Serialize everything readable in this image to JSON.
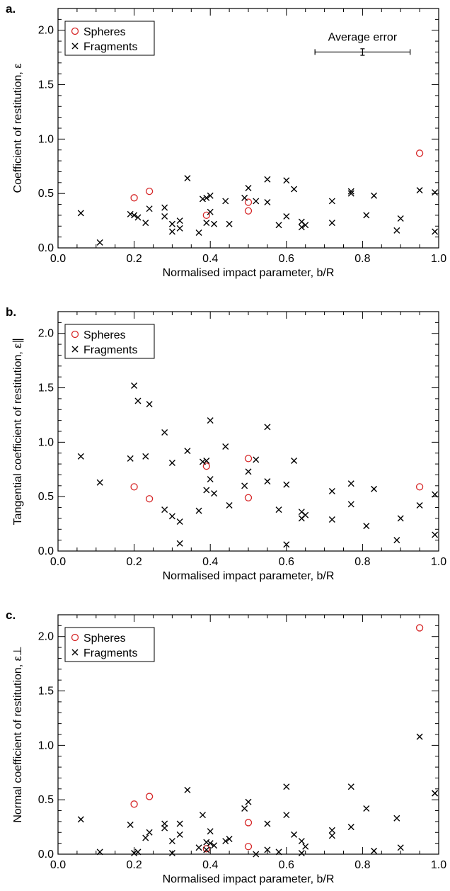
{
  "colors": {
    "spheres": "#d62728",
    "fragments": "#000000",
    "axes": "#000000"
  },
  "chart_data": [
    {
      "type": "scatter",
      "panel_label": "a.",
      "xlabel": "Normalised impact parameter, b/R",
      "ylabel": "Coefficient of restitution, ε",
      "xlim": [
        0,
        1.0
      ],
      "ylim": [
        0,
        2.2
      ],
      "xticks": [
        "0.0",
        "0.2",
        "0.4",
        "0.6",
        "0.8",
        "1.0"
      ],
      "xtick_values": [
        0,
        0.2,
        0.4,
        0.6,
        0.8,
        1.0
      ],
      "yticks": [
        "0.0",
        "0.5",
        "1.0",
        "1.5",
        "2.0"
      ],
      "ytick_values": [
        0,
        0.5,
        1.0,
        1.5,
        2.0
      ],
      "legend": {
        "position": "top-left",
        "entries": [
          "Spheres",
          "Fragments"
        ]
      },
      "annotation": {
        "text": "Average error",
        "x_center": 0.8,
        "half_width": 0.125,
        "y": 1.8,
        "y_err": 0.03
      },
      "series": [
        {
          "name": "Spheres",
          "marker": "circle",
          "points": [
            [
              0.2,
              0.46
            ],
            [
              0.24,
              0.52
            ],
            [
              0.39,
              0.3
            ],
            [
              0.5,
              0.42
            ],
            [
              0.5,
              0.34
            ],
            [
              0.95,
              0.87
            ]
          ]
        },
        {
          "name": "Fragments",
          "marker": "x",
          "points": [
            [
              0.06,
              0.32
            ],
            [
              0.11,
              0.05
            ],
            [
              0.19,
              0.31
            ],
            [
              0.2,
              0.3
            ],
            [
              0.21,
              0.28
            ],
            [
              0.23,
              0.23
            ],
            [
              0.24,
              0.36
            ],
            [
              0.28,
              0.29
            ],
            [
              0.28,
              0.37
            ],
            [
              0.3,
              0.22
            ],
            [
              0.3,
              0.15
            ],
            [
              0.32,
              0.25
            ],
            [
              0.32,
              0.18
            ],
            [
              0.34,
              0.64
            ],
            [
              0.37,
              0.14
            ],
            [
              0.38,
              0.45
            ],
            [
              0.39,
              0.23
            ],
            [
              0.39,
              0.46
            ],
            [
              0.4,
              0.48
            ],
            [
              0.4,
              0.33
            ],
            [
              0.41,
              0.22
            ],
            [
              0.44,
              0.43
            ],
            [
              0.45,
              0.22
            ],
            [
              0.49,
              0.46
            ],
            [
              0.5,
              0.55
            ],
            [
              0.52,
              0.43
            ],
            [
              0.55,
              0.42
            ],
            [
              0.55,
              0.63
            ],
            [
              0.58,
              0.21
            ],
            [
              0.6,
              0.62
            ],
            [
              0.6,
              0.29
            ],
            [
              0.62,
              0.54
            ],
            [
              0.64,
              0.19
            ],
            [
              0.64,
              0.24
            ],
            [
              0.65,
              0.21
            ],
            [
              0.72,
              0.23
            ],
            [
              0.72,
              0.43
            ],
            [
              0.77,
              0.52
            ],
            [
              0.77,
              0.5
            ],
            [
              0.81,
              0.3
            ],
            [
              0.83,
              0.48
            ],
            [
              0.89,
              0.16
            ],
            [
              0.9,
              0.27
            ],
            [
              0.95,
              0.53
            ],
            [
              0.99,
              0.51
            ],
            [
              0.99,
              0.15
            ]
          ]
        }
      ]
    },
    {
      "type": "scatter",
      "panel_label": "b.",
      "xlabel": "Normalised impact parameter, b/R",
      "ylabel": "Tangential coefficient of restitution, ε∥",
      "xlim": [
        0,
        1.0
      ],
      "ylim": [
        0,
        2.2
      ],
      "xticks": [
        "0.0",
        "0.2",
        "0.4",
        "0.6",
        "0.8",
        "1.0"
      ],
      "xtick_values": [
        0,
        0.2,
        0.4,
        0.6,
        0.8,
        1.0
      ],
      "yticks": [
        "0.0",
        "0.5",
        "1.0",
        "1.5",
        "2.0"
      ],
      "ytick_values": [
        0,
        0.5,
        1.0,
        1.5,
        2.0
      ],
      "legend": {
        "position": "top-left",
        "entries": [
          "Spheres",
          "Fragments"
        ]
      },
      "series": [
        {
          "name": "Spheres",
          "marker": "circle",
          "points": [
            [
              0.2,
              0.59
            ],
            [
              0.24,
              0.48
            ],
            [
              0.39,
              0.78
            ],
            [
              0.5,
              0.85
            ],
            [
              0.5,
              0.49
            ],
            [
              0.95,
              0.59
            ]
          ]
        },
        {
          "name": "Fragments",
          "marker": "x",
          "points": [
            [
              0.06,
              0.87
            ],
            [
              0.11,
              0.63
            ],
            [
              0.19,
              0.85
            ],
            [
              0.2,
              1.52
            ],
            [
              0.21,
              1.38
            ],
            [
              0.23,
              0.87
            ],
            [
              0.24,
              1.35
            ],
            [
              0.28,
              1.09
            ],
            [
              0.28,
              0.38
            ],
            [
              0.3,
              0.81
            ],
            [
              0.3,
              0.32
            ],
            [
              0.32,
              0.27
            ],
            [
              0.32,
              0.07
            ],
            [
              0.34,
              0.92
            ],
            [
              0.37,
              0.37
            ],
            [
              0.38,
              0.82
            ],
            [
              0.39,
              0.56
            ],
            [
              0.39,
              0.83
            ],
            [
              0.4,
              1.2
            ],
            [
              0.4,
              0.66
            ],
            [
              0.41,
              0.53
            ],
            [
              0.44,
              0.96
            ],
            [
              0.45,
              0.42
            ],
            [
              0.49,
              0.6
            ],
            [
              0.5,
              0.73
            ],
            [
              0.52,
              0.84
            ],
            [
              0.55,
              0.64
            ],
            [
              0.55,
              1.14
            ],
            [
              0.58,
              0.38
            ],
            [
              0.6,
              0.61
            ],
            [
              0.6,
              0.06
            ],
            [
              0.62,
              0.83
            ],
            [
              0.64,
              0.3
            ],
            [
              0.64,
              0.36
            ],
            [
              0.65,
              0.33
            ],
            [
              0.72,
              0.29
            ],
            [
              0.72,
              0.55
            ],
            [
              0.77,
              0.62
            ],
            [
              0.77,
              0.43
            ],
            [
              0.81,
              0.23
            ],
            [
              0.83,
              0.57
            ],
            [
              0.89,
              0.1
            ],
            [
              0.9,
              0.3
            ],
            [
              0.95,
              0.42
            ],
            [
              0.99,
              0.52
            ],
            [
              0.99,
              0.15
            ]
          ]
        }
      ]
    },
    {
      "type": "scatter",
      "panel_label": "c.",
      "xlabel": "Normalised impact parameter, b/R",
      "ylabel": "Normal coefficient of restitution, ε⊥",
      "xlim": [
        0,
        1.0
      ],
      "ylim": [
        0,
        2.2
      ],
      "xticks": [
        "0.0",
        "0.2",
        "0.4",
        "0.6",
        "0.8",
        "1.0"
      ],
      "xtick_values": [
        0,
        0.2,
        0.4,
        0.6,
        0.8,
        1.0
      ],
      "yticks": [
        "0.0",
        "0.5",
        "1.0",
        "1.5",
        "2.0"
      ],
      "ytick_values": [
        0,
        0.5,
        1.0,
        1.5,
        2.0
      ],
      "legend": {
        "position": "top-left",
        "entries": [
          "Spheres",
          "Fragments"
        ]
      },
      "series": [
        {
          "name": "Spheres",
          "marker": "circle",
          "points": [
            [
              0.2,
              0.46
            ],
            [
              0.24,
              0.53
            ],
            [
              0.39,
              0.05
            ],
            [
              0.5,
              0.29
            ],
            [
              0.5,
              0.07
            ],
            [
              0.95,
              2.08
            ]
          ]
        },
        {
          "name": "Fragments",
          "marker": "x",
          "points": [
            [
              0.06,
              0.32
            ],
            [
              0.11,
              0.02
            ],
            [
              0.19,
              0.27
            ],
            [
              0.2,
              0.01
            ],
            [
              0.21,
              0.02
            ],
            [
              0.23,
              0.15
            ],
            [
              0.24,
              0.2
            ],
            [
              0.28,
              0.28
            ],
            [
              0.28,
              0.24
            ],
            [
              0.3,
              0.01
            ],
            [
              0.3,
              0.12
            ],
            [
              0.32,
              0.28
            ],
            [
              0.32,
              0.18
            ],
            [
              0.34,
              0.59
            ],
            [
              0.37,
              0.06
            ],
            [
              0.38,
              0.36
            ],
            [
              0.39,
              0.11
            ],
            [
              0.39,
              0.04
            ],
            [
              0.4,
              0.21
            ],
            [
              0.4,
              0.1
            ],
            [
              0.41,
              0.08
            ],
            [
              0.44,
              0.12
            ],
            [
              0.45,
              0.14
            ],
            [
              0.49,
              0.42
            ],
            [
              0.5,
              0.48
            ],
            [
              0.52,
              0.0
            ],
            [
              0.55,
              0.28
            ],
            [
              0.55,
              0.04
            ],
            [
              0.58,
              0.02
            ],
            [
              0.6,
              0.62
            ],
            [
              0.6,
              0.36
            ],
            [
              0.62,
              0.18
            ],
            [
              0.64,
              0.12
            ],
            [
              0.64,
              0.01
            ],
            [
              0.65,
              0.07
            ],
            [
              0.72,
              0.22
            ],
            [
              0.72,
              0.17
            ],
            [
              0.77,
              0.62
            ],
            [
              0.77,
              0.25
            ],
            [
              0.81,
              0.42
            ],
            [
              0.83,
              0.03
            ],
            [
              0.89,
              0.33
            ],
            [
              0.9,
              0.06
            ],
            [
              0.95,
              1.08
            ],
            [
              0.99,
              0.56
            ],
            [
              0.99,
              0.56
            ]
          ]
        }
      ]
    }
  ]
}
